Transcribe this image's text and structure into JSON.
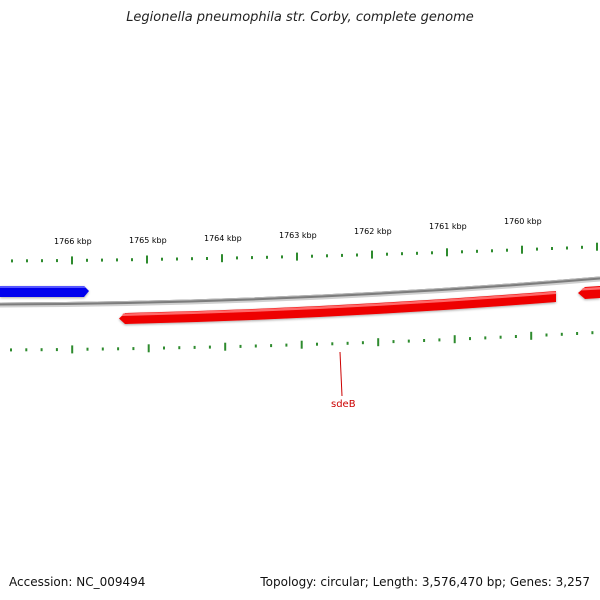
{
  "title": "Legionella pneumophila str. Corby, complete genome",
  "accession": "Accession: NC_009494",
  "genome_stats": "Topology: circular; Length: 3,576,470 bp; Genes: 3,257",
  "scale_labels": [
    "1766 kbp",
    "1765 kbp",
    "1764 kbp",
    "1763 kbp",
    "1762 kbp",
    "1761 kbp",
    "1760 kbp"
  ],
  "gene_label": "sdeB",
  "colors": {
    "backbone": "#8a8a8a",
    "forward_gene": "#ee0000",
    "reverse_gene": "#0000ee",
    "tick": "#2e8b2e",
    "gene_label": "#cc0000"
  }
}
